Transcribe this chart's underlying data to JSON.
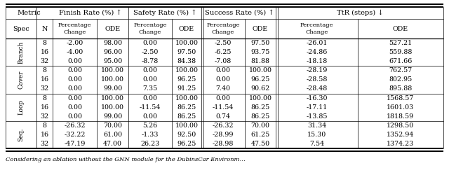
{
  "data": {
    "Cover Branch": {
      "8": {
        "fr_pc": "-2.00",
        "fr_ode": "98.00",
        "sr_pc": "0.00",
        "sr_ode": "100.00",
        "su_pc": "-2.50",
        "su_ode": "97.50",
        "ttr_pc": "-26.01",
        "ttr_ode": "527.21"
      },
      "16": {
        "fr_pc": "-4.00",
        "fr_ode": "96.00",
        "sr_pc": "-2.50",
        "sr_ode": "97.50",
        "su_pc": "-6.25",
        "su_ode": "93.75",
        "ttr_pc": "-24.86",
        "ttr_ode": "559.88"
      },
      "32": {
        "fr_pc": "0.00",
        "fr_ode": "95.00",
        "sr_pc": "-8.78",
        "sr_ode": "84.38",
        "su_pc": "-7.08",
        "su_ode": "81.88",
        "ttr_pc": "-18.18",
        "ttr_ode": "671.66"
      }
    },
    "Cover": {
      "8": {
        "fr_pc": "0.00",
        "fr_ode": "100.00",
        "sr_pc": "0.00",
        "sr_ode": "100.00",
        "su_pc": "0.00",
        "su_ode": "100.00",
        "ttr_pc": "-28.19",
        "ttr_ode": "762.57"
      },
      "16": {
        "fr_pc": "0.00",
        "fr_ode": "100.00",
        "sr_pc": "0.00",
        "sr_ode": "96.25",
        "su_pc": "0.00",
        "su_ode": "96.25",
        "ttr_pc": "-28.58",
        "ttr_ode": "802.95"
      },
      "32": {
        "fr_pc": "0.00",
        "fr_ode": "99.00",
        "sr_pc": "7.35",
        "sr_ode": "91.25",
        "su_pc": "7.40",
        "su_ode": "90.62",
        "ttr_pc": "-28.48",
        "ttr_ode": "895.88"
      }
    },
    "Loop": {
      "8": {
        "fr_pc": "0.00",
        "fr_ode": "100.00",
        "sr_pc": "0.00",
        "sr_ode": "100.00",
        "su_pc": "0.00",
        "su_ode": "100.00",
        "ttr_pc": "-16.30",
        "ttr_ode": "1568.57"
      },
      "16": {
        "fr_pc": "0.00",
        "fr_ode": "100.00",
        "sr_pc": "-11.54",
        "sr_ode": "86.25",
        "su_pc": "-11.54",
        "su_ode": "86.25",
        "ttr_pc": "-17.11",
        "ttr_ode": "1601.03"
      },
      "32": {
        "fr_pc": "0.00",
        "fr_ode": "99.00",
        "sr_pc": "0.00",
        "sr_ode": "86.25",
        "su_pc": "0.74",
        "su_ode": "86.25",
        "ttr_pc": "-13.85",
        "ttr_ode": "1818.59"
      }
    },
    "Seq.": {
      "8": {
        "fr_pc": "-26.32",
        "fr_ode": "70.00",
        "sr_pc": "5.26",
        "sr_ode": "100.00",
        "su_pc": "-26.32",
        "su_ode": "70.00",
        "ttr_pc": "31.34",
        "ttr_ode": "1298.50"
      },
      "16": {
        "fr_pc": "-32.22",
        "fr_ode": "61.00",
        "sr_pc": "-1.33",
        "sr_ode": "92.50",
        "su_pc": "-28.99",
        "su_ode": "61.25",
        "ttr_pc": "15.30",
        "ttr_ode": "1352.94"
      },
      "32": {
        "fr_pc": "-47.19",
        "fr_ode": "47.00",
        "sr_pc": "26.23",
        "sr_ode": "96.25",
        "su_pc": "-28.98",
        "su_ode": "47.50",
        "ttr_pc": "7.54",
        "ttr_ode": "1374.23"
      }
    }
  },
  "bg_color": "#ffffff",
  "text_color": "#000000",
  "font_size": 6.8,
  "caption": "Considering an ablation without the GNN module for the DubinsCar Environm..."
}
